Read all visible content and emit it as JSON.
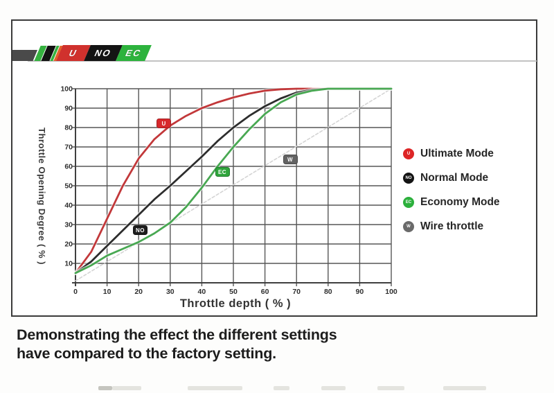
{
  "banner": {
    "segments": [
      {
        "label": "U",
        "color": "#d0312d"
      },
      {
        "label": "NO",
        "color": "#141414"
      },
      {
        "label": "EC",
        "color": "#2db33d"
      }
    ]
  },
  "chart_data": {
    "type": "line",
    "title": "",
    "xlabel": "Throttle depth ( % )",
    "ylabel": "Throttle Opening Degree ( % )",
    "xlim": [
      0,
      100
    ],
    "ylim": [
      0,
      100
    ],
    "xticks": [
      0,
      10,
      20,
      30,
      40,
      50,
      60,
      70,
      80,
      90,
      100
    ],
    "yticks": [
      10,
      20,
      30,
      40,
      50,
      60,
      70,
      80,
      90,
      100
    ],
    "grid": true,
    "grid_color": "#565656",
    "series": [
      {
        "name": "Wire throttle",
        "color": "#d4d4d4",
        "line_style": "dotted",
        "x": [
          0,
          100
        ],
        "y": [
          1,
          100
        ]
      },
      {
        "name": "Ultimate Mode",
        "color": "#c2383a",
        "line_style": "solid",
        "marker": {
          "label": "U",
          "color": "#d7282c",
          "x": 28,
          "y": 82
        },
        "x": [
          0,
          5,
          10,
          15,
          20,
          25,
          30,
          35,
          40,
          45,
          50,
          55,
          60,
          65,
          70,
          75,
          80,
          85,
          90,
          95,
          100
        ],
        "y": [
          5,
          16,
          33,
          50,
          64,
          74,
          81,
          86,
          90,
          93,
          95.5,
          97.5,
          99,
          99.7,
          100,
          100,
          100,
          100,
          100,
          100,
          100
        ]
      },
      {
        "name": "Normal Mode",
        "color": "#2d2d2d",
        "line_style": "solid",
        "marker": {
          "label": "NO",
          "color": "#1d1d1d",
          "x": 20.5,
          "y": 27
        },
        "x": [
          0,
          5,
          10,
          15,
          20,
          25,
          30,
          35,
          40,
          45,
          50,
          55,
          60,
          65,
          70,
          75,
          80,
          85,
          90,
          95,
          100
        ],
        "y": [
          5,
          11,
          19,
          27,
          35,
          43,
          50,
          57.5,
          65,
          73,
          80,
          86,
          91,
          95,
          98,
          99.5,
          100,
          100,
          100,
          100,
          100
        ]
      },
      {
        "name": "Economy Mode",
        "color": "#48a852",
        "line_style": "solid",
        "marker": {
          "label": "EC",
          "color": "#2fa53c",
          "x": 46.5,
          "y": 57
        },
        "x": [
          0,
          5,
          10,
          15,
          20,
          25,
          30,
          35,
          40,
          45,
          50,
          55,
          60,
          65,
          70,
          75,
          80,
          85,
          90,
          95,
          100
        ],
        "y": [
          5,
          9,
          14,
          17.5,
          21,
          25.5,
          31,
          39,
          49,
          60,
          70,
          79,
          87,
          93,
          97,
          99,
          100,
          100,
          100,
          100,
          100
        ]
      }
    ],
    "legend": {
      "position": "right",
      "items": [
        {
          "label": "Ultimate Mode",
          "badge": "U",
          "color": "#dd2526"
        },
        {
          "label": "Normal Mode",
          "badge": "NO",
          "color": "#141414"
        },
        {
          "label": "Economy Mode",
          "badge": "EC",
          "color": "#2cb03c"
        },
        {
          "label": "Wire throttle",
          "badge": "W",
          "color": "#6a6a6a"
        }
      ]
    },
    "wire_marker": {
      "label": "W",
      "color": "#636363",
      "x": 68,
      "y": 63.5
    }
  },
  "caption": {
    "line1": "Demonstrating the effect the different settings",
    "line2": "have compared to the factory setting."
  }
}
